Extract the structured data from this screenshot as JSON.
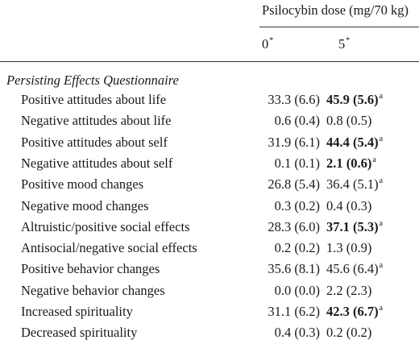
{
  "header": {
    "dose_label": "Psilocybin dose (mg/70 kg)",
    "columns": [
      {
        "label": "0",
        "mark": "*"
      },
      {
        "label": "5",
        "mark": "*"
      }
    ]
  },
  "section_title": "Persisting Effects Questionnaire",
  "rows": [
    {
      "label": "Positive attitudes about life",
      "v0": "33.3 (6.6)",
      "v5": "45.9 (5.6)",
      "v5_bold": true,
      "v5_sup": "a"
    },
    {
      "label": "Negative attitudes about life",
      "v0": "0.6 (0.4)",
      "v5": "0.8 (0.5)",
      "v5_bold": false,
      "v5_sup": ""
    },
    {
      "label": "Positive attitudes about self",
      "v0": "31.9 (6.1)",
      "v5": "44.4 (5.4)",
      "v5_bold": true,
      "v5_sup": "a"
    },
    {
      "label": "Negative attitudes about self",
      "v0": "0.1 (0.1)",
      "v5": "2.1 (0.6)",
      "v5_bold": true,
      "v5_sup": "a"
    },
    {
      "label": "Positive mood changes",
      "v0": "26.8 (5.4)",
      "v5": "36.4 (5.1)",
      "v5_bold": false,
      "v5_sup": "a"
    },
    {
      "label": "Negative mood changes",
      "v0": "0.3 (0.2)",
      "v5": "0.4 (0.3)",
      "v5_bold": false,
      "v5_sup": ""
    },
    {
      "label": "Altruistic/positive social effects",
      "v0": "28.3 (6.0)",
      "v5": "37.1 (5.3)",
      "v5_bold": true,
      "v5_sup": "a"
    },
    {
      "label": "Antisocial/negative social effects",
      "v0": "0.2 (0.2)",
      "v5": "1.3 (0.9)",
      "v5_bold": false,
      "v5_sup": ""
    },
    {
      "label": "Positive behavior changes",
      "v0": "35.6 (8.1)",
      "v5": "45.6 (6.4)",
      "v5_bold": false,
      "v5_sup": "a"
    },
    {
      "label": "Negative behavior changes",
      "v0": "0.0 (0.0)",
      "v5": "2.2 (2.3)",
      "v5_bold": false,
      "v5_sup": ""
    },
    {
      "label": "Increased spirituality",
      "v0": "31.1 (6.2)",
      "v5": "42.3 (6.7)",
      "v5_bold": true,
      "v5_sup": "a"
    },
    {
      "label": "Decreased spirituality",
      "v0": "0.4 (0.3)",
      "v5": "0.2 (0.2)",
      "v5_bold": false,
      "v5_sup": ""
    }
  ]
}
